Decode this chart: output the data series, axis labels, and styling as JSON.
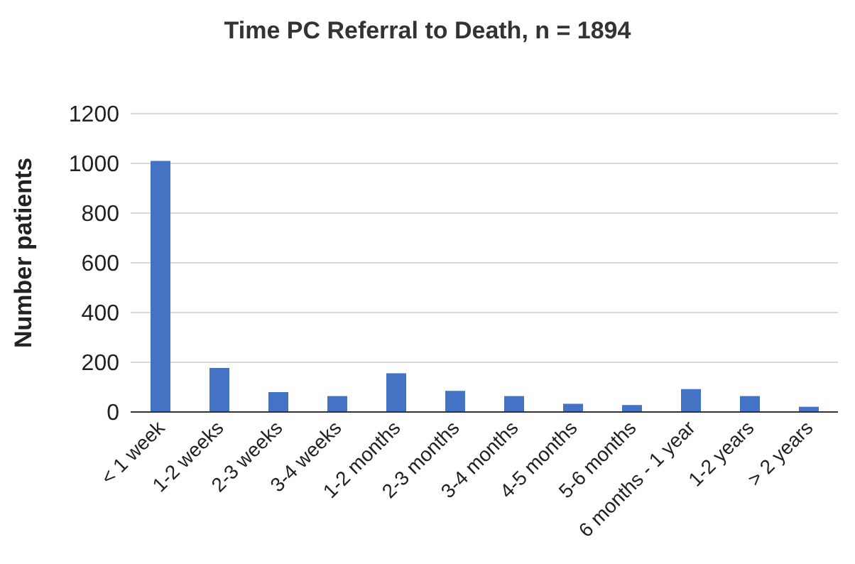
{
  "chart_data": {
    "type": "bar",
    "title": "Time PC Referral to Death, n = 1894",
    "ylabel": "Number patients",
    "categories": [
      "< 1 week",
      "1-2 weeks",
      "2-3 weeks",
      "3-4 weeks",
      "1-2 months",
      "2-3 months",
      "3-4 months",
      "4-5 months",
      "5-6 months",
      "6 months - 1 year",
      "1-2 years",
      "> 2 years"
    ],
    "values": [
      1010,
      177,
      80,
      64,
      156,
      85,
      64,
      33,
      28,
      92,
      64,
      21
    ],
    "color": "#4472c4",
    "ylim": [
      0,
      1200
    ],
    "yticks": [
      0,
      200,
      400,
      600,
      800,
      1000,
      1200
    ],
    "grid": "y",
    "legend": false
  }
}
